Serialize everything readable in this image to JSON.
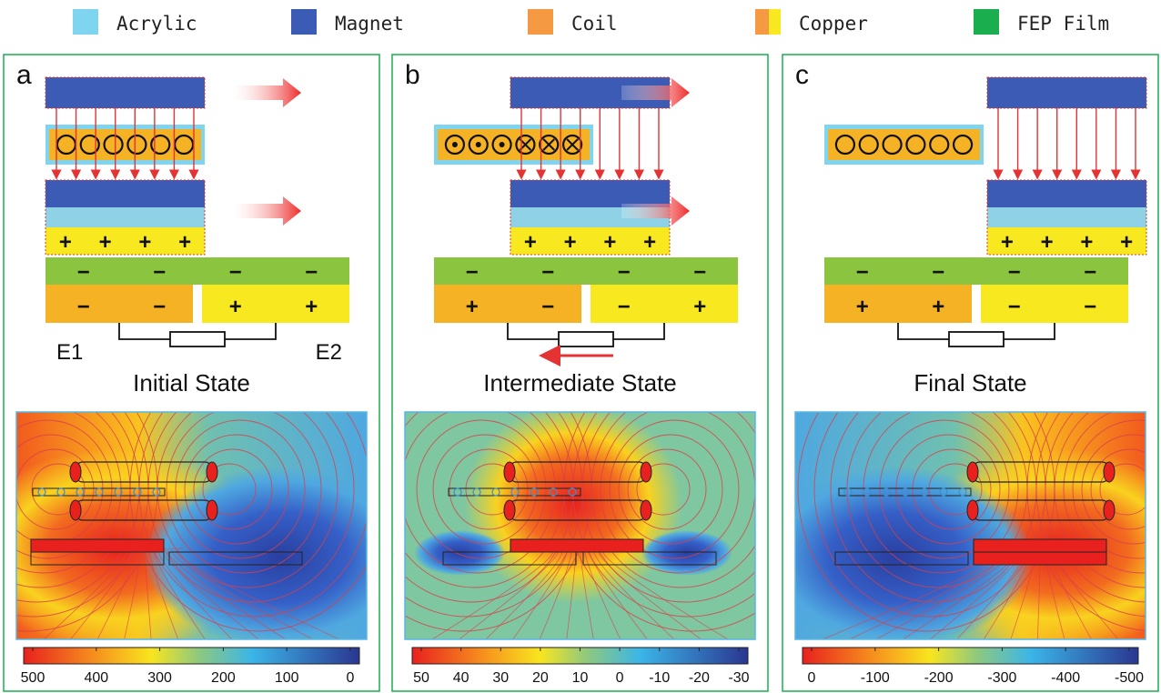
{
  "legend": [
    {
      "label": "Acrylic",
      "color": "#7FD4F0"
    },
    {
      "label": "Magnet",
      "color": "#3B5BB5"
    },
    {
      "label": "Coil",
      "color": "#F59A43"
    },
    {
      "label": "Copper",
      "color": "#F8E81F"
    },
    {
      "label": "FEP Film",
      "color": "#1AAE4F"
    }
  ],
  "panels": [
    {
      "letter": "a",
      "state": "Initial State",
      "coil_symbols": [
        "circle",
        "circle",
        "circle",
        "circle",
        "circle",
        "circle"
      ],
      "film_signs": [
        "−",
        "−",
        "−",
        "−"
      ],
      "electrode_signs": [
        "−",
        "−",
        "+",
        "+"
      ],
      "electrode_labels": [
        "E1",
        "E2"
      ],
      "magnet_plus": [
        "+",
        "+",
        "+",
        "+"
      ],
      "current_arrow": false,
      "colorbar_ticks": [
        "500",
        "400",
        "300",
        "200",
        "100",
        "0"
      ]
    },
    {
      "letter": "b",
      "state": "Intermediate State",
      "coil_symbols": [
        "dot",
        "dot",
        "dot",
        "cross",
        "cross",
        "cross"
      ],
      "film_signs": [
        "−",
        "−",
        "−",
        "−"
      ],
      "electrode_signs": [
        "+",
        "−",
        "−",
        "+"
      ],
      "electrode_labels": [
        "",
        ""
      ],
      "magnet_plus": [
        "+",
        "+",
        "+",
        "+"
      ],
      "current_arrow": true,
      "colorbar_ticks": [
        "50",
        "40",
        "30",
        "20",
        "10",
        "0",
        "-10",
        "-20",
        "-30"
      ]
    },
    {
      "letter": "c",
      "state": "Final State",
      "coil_symbols": [
        "circle",
        "circle",
        "circle",
        "circle",
        "circle",
        "circle"
      ],
      "film_signs": [
        "−",
        "−",
        "−",
        "−"
      ],
      "electrode_signs": [
        "+",
        "+",
        "−",
        "−"
      ],
      "electrode_labels": [
        "",
        ""
      ],
      "magnet_plus": [
        "+",
        "+",
        "+",
        "+"
      ],
      "current_arrow": false,
      "colorbar_ticks": [
        "0",
        "-100",
        "-200",
        "-300",
        "-400",
        "-500"
      ]
    }
  ]
}
